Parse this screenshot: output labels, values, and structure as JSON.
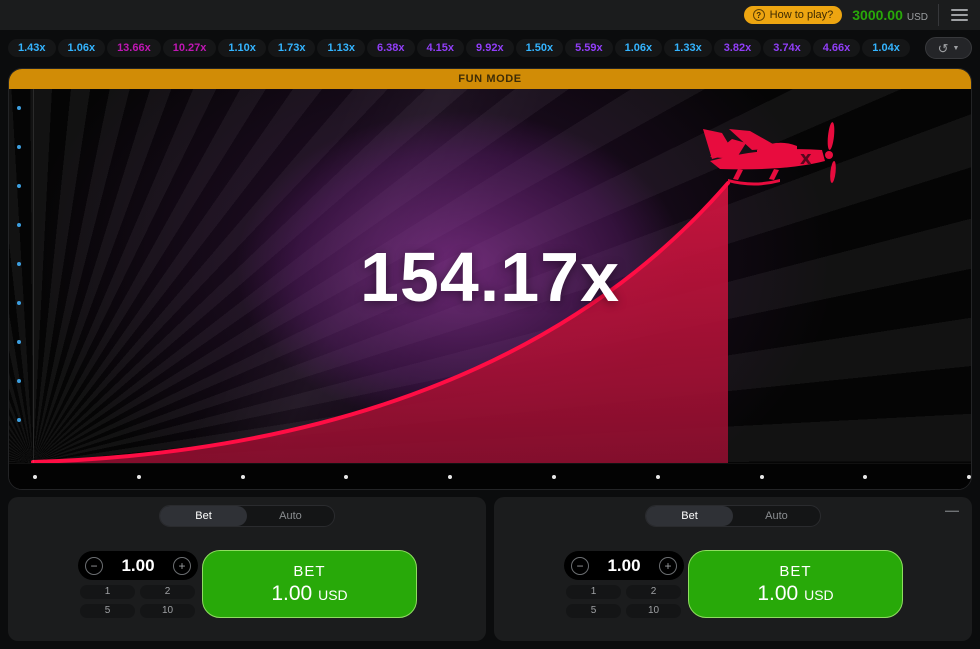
{
  "topbar": {
    "how_to_play_label": "How to play?",
    "balance_value": "3000.00",
    "balance_currency": "USD"
  },
  "history": {
    "items": [
      {
        "value": "1.43x",
        "tier": "blue"
      },
      {
        "value": "1.06x",
        "tier": "blue"
      },
      {
        "value": "13.66x",
        "tier": "magenta"
      },
      {
        "value": "10.27x",
        "tier": "magenta"
      },
      {
        "value": "1.10x",
        "tier": "blue"
      },
      {
        "value": "1.73x",
        "tier": "blue"
      },
      {
        "value": "1.13x",
        "tier": "blue"
      },
      {
        "value": "6.38x",
        "tier": "purple"
      },
      {
        "value": "4.15x",
        "tier": "purple"
      },
      {
        "value": "9.92x",
        "tier": "purple"
      },
      {
        "value": "1.50x",
        "tier": "blue"
      },
      {
        "value": "5.59x",
        "tier": "purple"
      },
      {
        "value": "1.06x",
        "tier": "blue"
      },
      {
        "value": "1.33x",
        "tier": "blue"
      },
      {
        "value": "3.82x",
        "tier": "purple"
      },
      {
        "value": "3.74x",
        "tier": "purple"
      },
      {
        "value": "4.66x",
        "tier": "purple"
      },
      {
        "value": "1.04x",
        "tier": "blue"
      }
    ]
  },
  "game": {
    "banner": "FUN MODE",
    "multiplier": "154.17x",
    "left_axis_dots": 9,
    "bottom_axis_dots": 10
  },
  "panels": [
    {
      "tabs": [
        {
          "label": "Bet"
        },
        {
          "label": "Auto"
        }
      ],
      "active_tab": "Bet",
      "amount": "1.00",
      "minus": "−",
      "plus": "+",
      "quick_amounts": [
        "1",
        "2",
        "5",
        "10"
      ],
      "bet_button": {
        "line1": "BET",
        "amount": "1.00",
        "currency": "USD"
      }
    },
    {
      "tabs": [
        {
          "label": "Bet"
        },
        {
          "label": "Auto"
        }
      ],
      "active_tab": "Bet",
      "amount": "1.00",
      "minus": "−",
      "plus": "+",
      "quick_amounts": [
        "1",
        "2",
        "5",
        "10"
      ],
      "bet_button": {
        "line1": "BET",
        "amount": "1.00",
        "currency": "USD"
      },
      "remove_label": "—"
    }
  ],
  "colors": {
    "tier_blue": "#34b4ff",
    "tier_purple": "#913ef8",
    "tier_magenta": "#c017b4",
    "accent_orange": "#d18c06",
    "green": "#28a909",
    "curve_red": "#ff0d44"
  }
}
